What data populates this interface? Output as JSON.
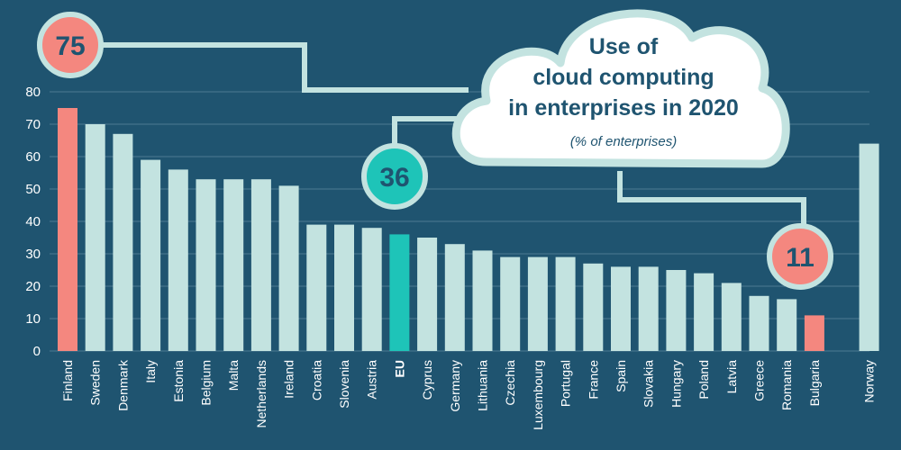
{
  "chart_data": {
    "type": "bar",
    "title_lines": [
      "Use of",
      "cloud computing",
      "in enterprises in 2020"
    ],
    "subtitle": "(% of enterprises)",
    "ylim": [
      0,
      80
    ],
    "yticks": [
      0,
      10,
      20,
      30,
      40,
      50,
      60,
      70,
      80
    ],
    "grid": true,
    "categories": [
      "Finland",
      "Sweden",
      "Denmark",
      "Italy",
      "Estonia",
      "Belgium",
      "Malta",
      "Netherlands",
      "Ireland",
      "Croatia",
      "Slovenia",
      "Austria",
      "EU",
      "Cyprus",
      "Germany",
      "Lithuania",
      "Czechia",
      "Luxembourg",
      "Portugal",
      "France",
      "Spain",
      "Slovakia",
      "Hungary",
      "Poland",
      "Latvia",
      "Greece",
      "Romania",
      "Bulgaria",
      "Norway"
    ],
    "values": [
      75,
      70,
      67,
      59,
      56,
      53,
      53,
      53,
      51,
      39,
      39,
      38,
      36,
      35,
      33,
      31,
      29,
      29,
      29,
      27,
      26,
      26,
      25,
      24,
      21,
      17,
      16,
      11,
      64
    ],
    "highlights": {
      "Finland": "#f4877f",
      "Bulgaria": "#f4877f",
      "EU": "#1ec4b8"
    },
    "callouts": [
      {
        "category": "Finland",
        "label": "75",
        "color": "#f4877f"
      },
      {
        "category": "EU",
        "label": "36",
        "color": "#1ec4b8"
      },
      {
        "category": "Bulgaria",
        "label": "11",
        "color": "#f4877f"
      }
    ]
  },
  "colors": {
    "background": "#1f5470",
    "bar": "#c3e3e0",
    "grid": "#4d7a92",
    "connector": "#c3e3e0",
    "text": "#ffffff"
  }
}
